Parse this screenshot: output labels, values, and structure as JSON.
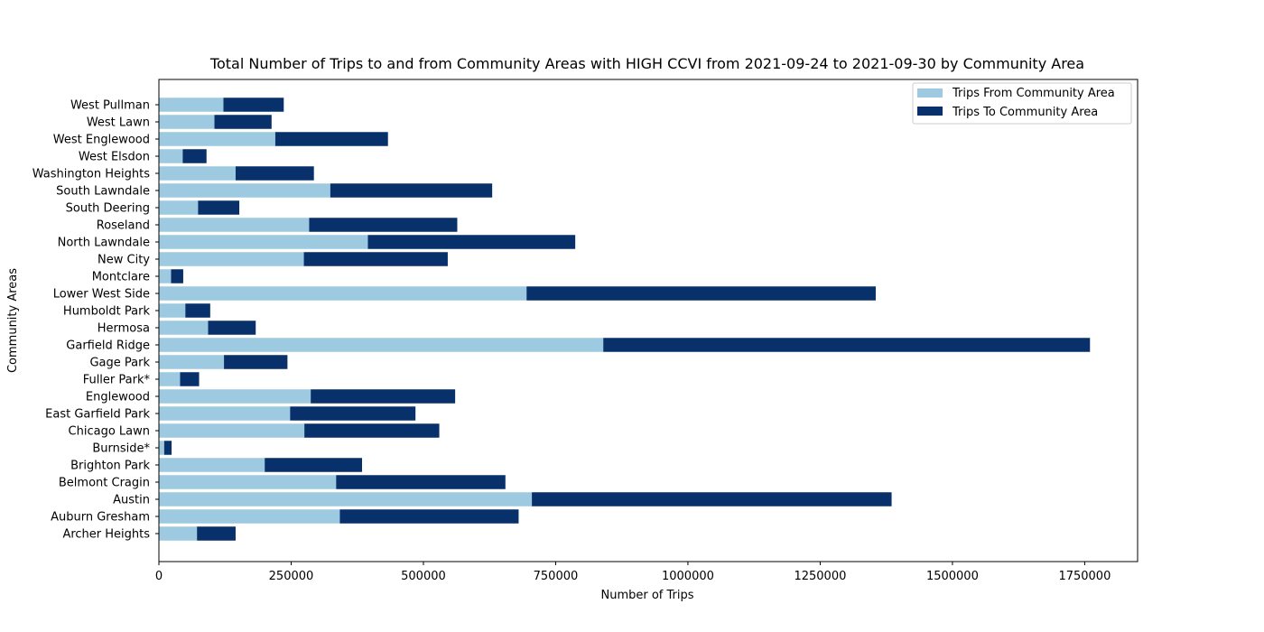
{
  "chart_data": {
    "type": "bar",
    "orientation": "horizontal",
    "stacked": true,
    "title": "Total Number of Trips to and from Community Areas with HIGH CCVI from 2021-09-24 to 2021-09-30 by Community Area",
    "xlabel": "Number of Trips",
    "ylabel": "Community Areas",
    "xlim": [
      0,
      1850000
    ],
    "xticks": [
      0,
      250000,
      500000,
      750000,
      1000000,
      1250000,
      1500000,
      1750000
    ],
    "xtick_labels": [
      "0",
      "250000",
      "500000",
      "750000",
      "1000000",
      "1250000",
      "1500000",
      "1750000"
    ],
    "grid": false,
    "legend_position": "top-right",
    "categories": [
      "Archer Heights",
      "Auburn Gresham",
      "Austin",
      "Belmont Cragin",
      "Brighton Park",
      "Burnside*",
      "Chicago Lawn",
      "East Garfield Park",
      "Englewood",
      "Fuller Park*",
      "Gage Park",
      "Garfield Ridge",
      "Hermosa",
      "Humboldt Park",
      "Lower West Side",
      "Montclare",
      "New City",
      "North Lawndale",
      "Roseland",
      "South Deering",
      "South Lawndale",
      "Washington Heights",
      "West Elsdon",
      "West Englewood",
      "West Lawn",
      "West Pullman"
    ],
    "series": [
      {
        "name": "Trips From Community Area",
        "color": "#9ecae1",
        "values": [
          72000,
          342000,
          705000,
          335000,
          200000,
          10000,
          275000,
          248000,
          287000,
          40000,
          123000,
          840000,
          93000,
          50000,
          695000,
          23000,
          274000,
          395000,
          284000,
          74000,
          324000,
          145000,
          45000,
          220000,
          105000,
          122000
        ]
      },
      {
        "name": "Trips To Community Area",
        "color": "#08306b",
        "values": [
          73000,
          338000,
          680000,
          320000,
          184000,
          14000,
          255000,
          237000,
          273000,
          36000,
          120000,
          920000,
          90000,
          47000,
          660000,
          23000,
          272000,
          392000,
          280000,
          78000,
          306000,
          148000,
          45000,
          213000,
          108000,
          114000
        ]
      }
    ]
  }
}
